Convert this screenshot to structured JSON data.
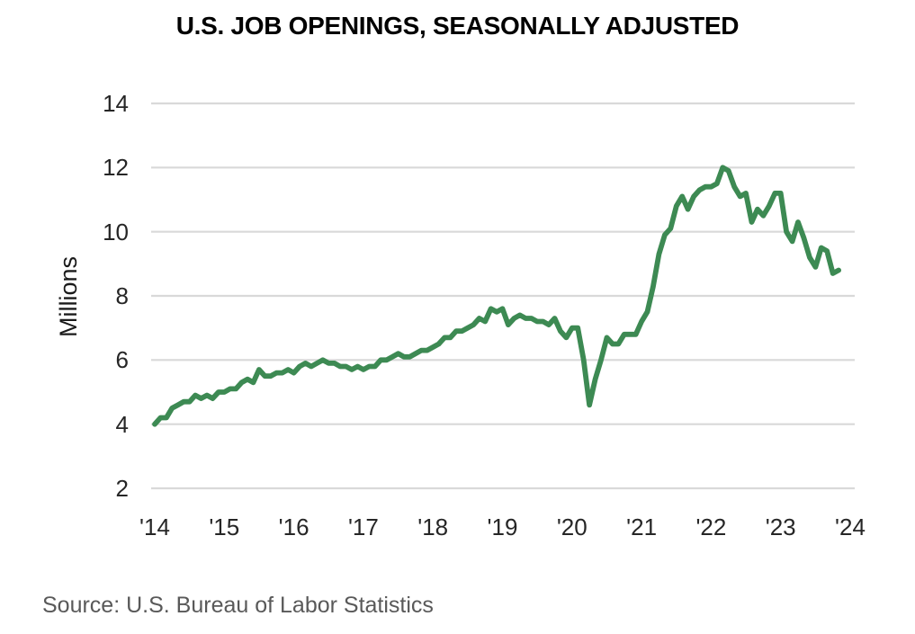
{
  "source_note": "Source: U.S. Bureau of Labor Statistics",
  "chart_data": {
    "type": "line",
    "title": "U.S. JOB OPENINGS, SEASONALLY ADJUSTED",
    "ylabel": "Millions",
    "units": "millions of job openings",
    "frequency": "monthly",
    "x_start": "2014-01",
    "x_end": "2023-11",
    "ylim": [
      2,
      14
    ],
    "y_ticks": [
      2,
      4,
      6,
      8,
      10,
      12,
      14
    ],
    "x_tick_labels": [
      "'14",
      "'15",
      "'16",
      "'17",
      "'18",
      "'19",
      "'20",
      "'21",
      "'22",
      "'23",
      "'24"
    ],
    "grid": "horizontal",
    "legend": "none",
    "line_color": "#3d8a53",
    "grid_color": "#d9d9d9",
    "series": [
      {
        "name": "U.S. job openings, seasonally adjusted",
        "values_by_year": {
          "2014": [
            4.0,
            4.2,
            4.2,
            4.5,
            4.6,
            4.7,
            4.7,
            4.9,
            4.8,
            4.9,
            4.8,
            5.0
          ],
          "2015": [
            5.0,
            5.1,
            5.1,
            5.3,
            5.4,
            5.3,
            5.7,
            5.5,
            5.5,
            5.6,
            5.6,
            5.7
          ],
          "2016": [
            5.6,
            5.8,
            5.9,
            5.8,
            5.9,
            6.0,
            5.9,
            5.9,
            5.8,
            5.8,
            5.7,
            5.8
          ],
          "2017": [
            5.7,
            5.8,
            5.8,
            6.0,
            6.0,
            6.1,
            6.2,
            6.1,
            6.1,
            6.2,
            6.3,
            6.3
          ],
          "2018": [
            6.4,
            6.5,
            6.7,
            6.7,
            6.9,
            6.9,
            7.0,
            7.1,
            7.3,
            7.2,
            7.6,
            7.5
          ],
          "2019": [
            7.6,
            7.1,
            7.3,
            7.4,
            7.3,
            7.3,
            7.2,
            7.2,
            7.1,
            7.3,
            6.9,
            6.7
          ],
          "2020": [
            7.0,
            7.0,
            6.0,
            4.6,
            5.4,
            6.0,
            6.7,
            6.5,
            6.5,
            6.8,
            6.8,
            6.8
          ],
          "2021": [
            7.2,
            7.5,
            8.3,
            9.3,
            9.9,
            10.1,
            10.8,
            11.1,
            10.7,
            11.1,
            11.3,
            11.4
          ],
          "2022": [
            11.4,
            11.5,
            12.0,
            11.9,
            11.4,
            11.1,
            11.2,
            10.3,
            10.7,
            10.5,
            10.8,
            11.2
          ],
          "2023": [
            11.2,
            10.0,
            9.7,
            10.3,
            9.8,
            9.2,
            8.9,
            9.5,
            9.4,
            8.7,
            8.8
          ]
        }
      }
    ]
  }
}
